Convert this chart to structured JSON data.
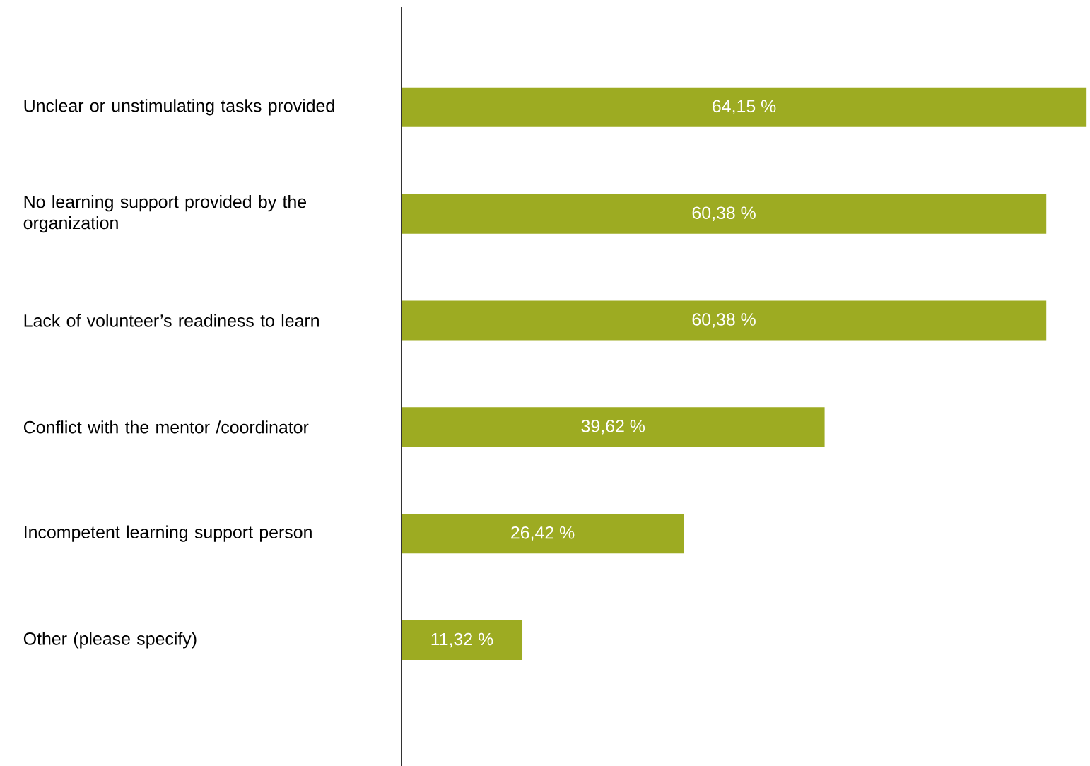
{
  "chart_data": {
    "type": "bar",
    "orientation": "horizontal",
    "categories": [
      "Unclear or unstimulating tasks provided",
      "No learning support provided by the organization",
      "Lack of volunteer’s readiness to learn",
      "Conflict with the mentor /coordinator",
      "Incompetent learning support person",
      "Other (please specify)"
    ],
    "values": [
      64.15,
      60.38,
      60.38,
      39.62,
      26.42,
      11.32
    ],
    "value_labels": [
      "64,15 %",
      "60,38 %",
      "60,38 %",
      "39,62 %",
      "26,42 %",
      "11,32 %"
    ],
    "color": "#9dab22"
  }
}
